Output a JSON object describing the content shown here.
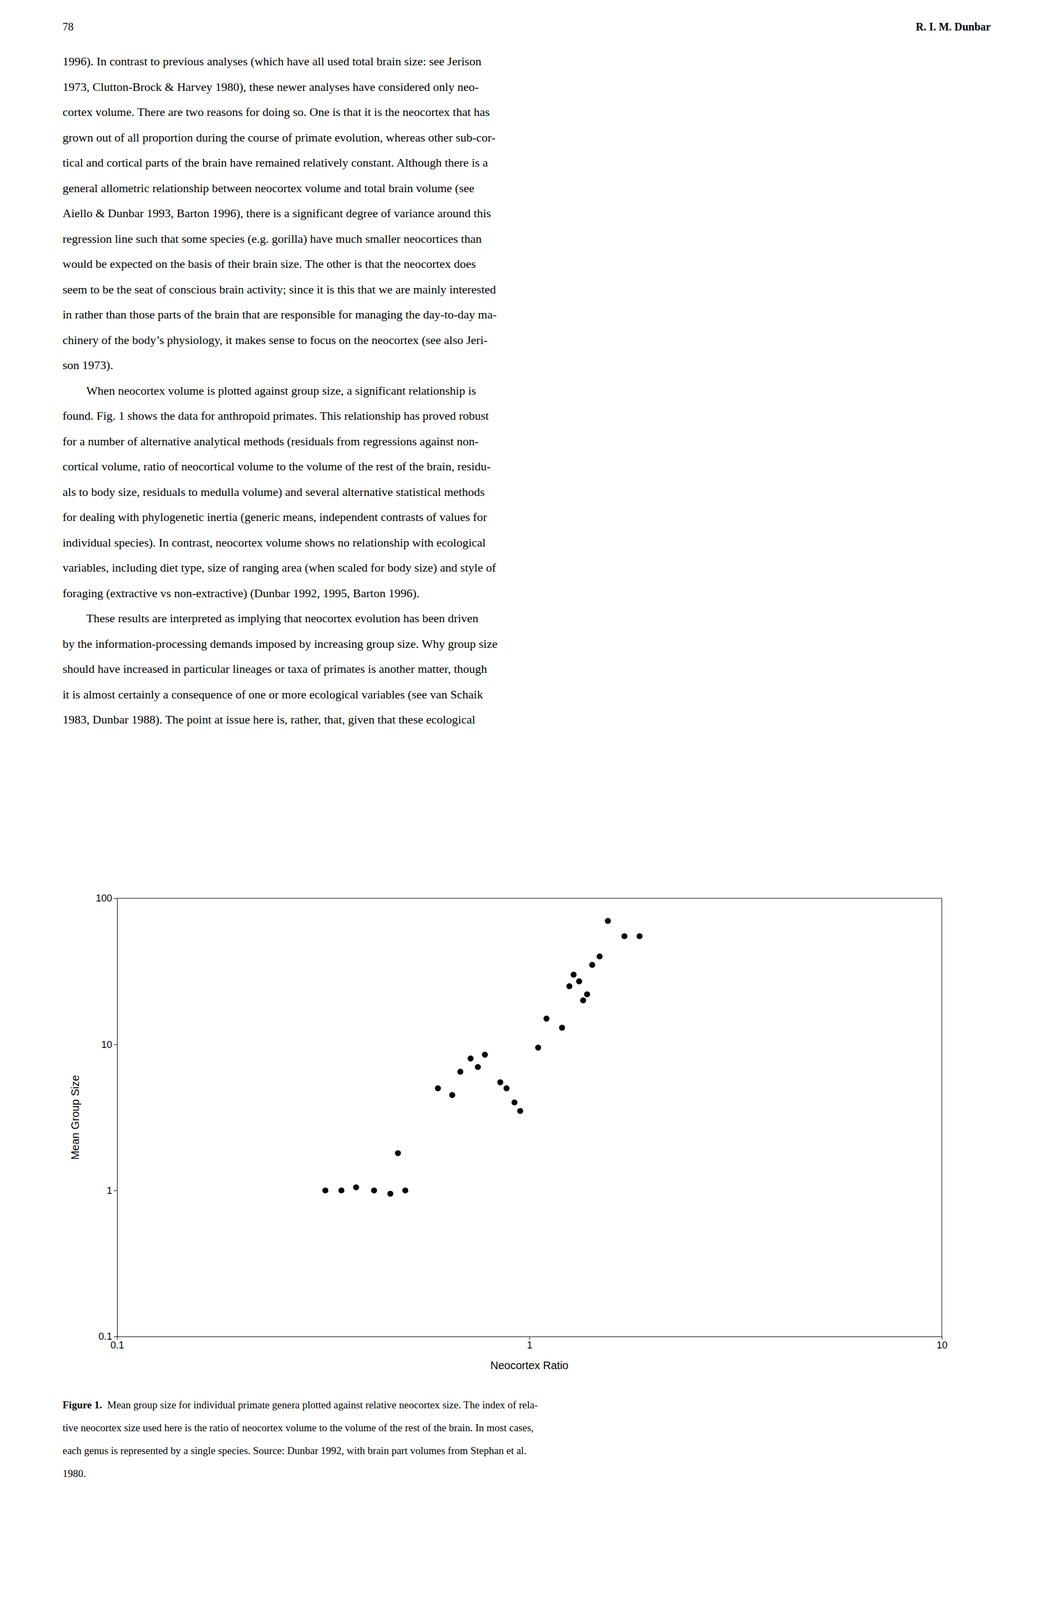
{
  "page_number": "78",
  "author": "R. I. M. Dunbar",
  "body_lines": [
    "1996). In contrast to previous analyses (which have all used total brain size: see Jerison",
    "1973, Clutton-Brock & Harvey 1980), these newer analyses have considered only neo-",
    "cortex volume. There are two reasons for doing so. One is that it is the neocortex that has",
    "grown out of all proportion during the course of primate evolution, whereas other sub-cor-",
    "tical and cortical parts of the brain have remained relatively constant. Although there is a",
    "general allometric relationship between neocortex volume and total brain volume (see",
    "Aiello & Dunbar 1993, Barton 1996), there is a significant degree of variance around this",
    "regression line such that some species (e.g. gorilla) have much smaller neocortices than",
    "would be expected on the basis of their brain size. The other is that the neocortex does",
    "seem to be the seat of conscious brain activity; since it is this that we are mainly interested",
    "in rather than those parts of the brain that are responsible for managing the day-to-day ma-",
    "chinery of the body’s physiology, it makes sense to focus on the neocortex (see also Jeri-",
    "son 1973).",
    "        When neocortex volume is plotted against group size, a significant relationship is",
    "found. Fig. 1 shows the data for anthropoid primates. This relationship has proved robust",
    "for a number of alternative analytical methods (residuals from regressions against non-",
    "cortical volume, ratio of neocortical volume to the volume of the rest of the brain, residu-",
    "als to body size, residuals to medulla volume) and several alternative statistical methods",
    "for dealing with phylogenetic inertia (generic means, independent contrasts of values for",
    "individual species). In contrast, neocortex volume shows no relationship with ecological",
    "variables, including diet type, size of ranging area (when scaled for body size) and style of",
    "foraging (extractive vs non-extractive) (Dunbar 1992, 1995, Barton 1996).",
    "        These results are interpreted as implying that neocortex evolution has been driven",
    "by the information-processing demands imposed by increasing group size. Why group size",
    "should have increased in particular lineages or taxa of primates is another matter, though",
    "it is almost certainly a consequence of one or more ecological variables (see van Schaik",
    "1983, Dunbar 1988). The point at issue here is, rather, that, given that these ecological"
  ],
  "caption_lines": [
    "Figure 1.  Mean group size for individual primate genera plotted against relative neocortex size. The index of rela-",
    "tive neocortex size used here is the ratio of neocortex volume to the volume of the rest of the brain. In most cases,",
    "each genus is represented by a single species. Source: Dunbar 1992, with brain part volumes from Stephan et al.",
    "1980."
  ],
  "chart_data": {
    "type": "scatter",
    "x_label": "Neocortex Ratio",
    "y_label": "Mean Group Size",
    "x": [
      0.32,
      0.35,
      0.38,
      0.42,
      0.46,
      0.5,
      0.48,
      0.6,
      0.65,
      0.68,
      0.72,
      0.75,
      0.78,
      0.85,
      0.88,
      0.92,
      0.95,
      1.05,
      1.1,
      1.2,
      1.25,
      1.28,
      1.32,
      1.35,
      1.38,
      1.42,
      1.48,
      1.55,
      1.7,
      1.85
    ],
    "values": [
      1.0,
      1.0,
      1.05,
      1.0,
      0.95,
      1.0,
      1.8,
      5.0,
      4.5,
      6.5,
      8.0,
      7.0,
      8.5,
      5.5,
      5.0,
      4.0,
      3.5,
      9.5,
      15.0,
      13.0,
      25.0,
      30.0,
      27.0,
      20.0,
      22.0,
      35.0,
      40.0,
      70.0,
      55.0,
      55.0
    ],
    "color": "#000000",
    "log": true,
    "xlim": [
      0.1,
      10
    ],
    "ylim": [
      0.1,
      100
    ],
    "xticks": [
      0.1,
      1,
      10
    ],
    "yticks": [
      0.1,
      1,
      10,
      100
    ]
  }
}
